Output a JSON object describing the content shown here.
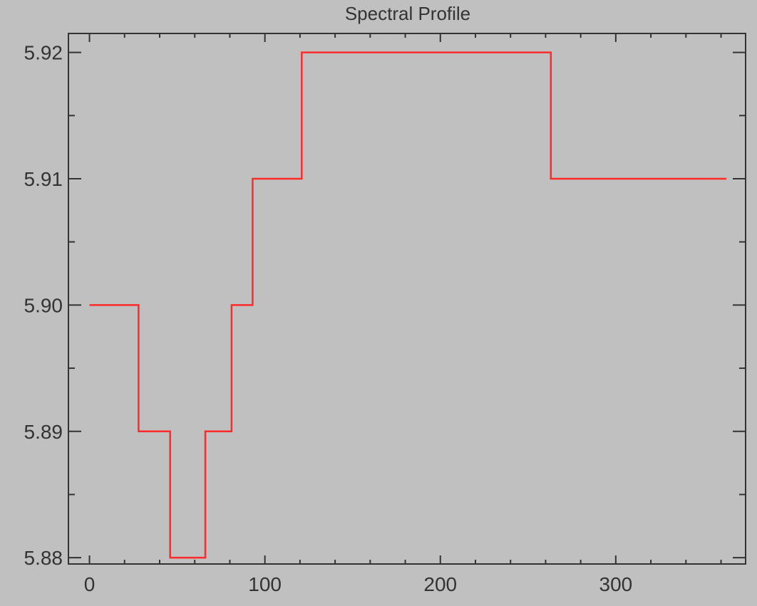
{
  "chart_data": {
    "type": "line",
    "title": "Spectral Profile",
    "xlabel": "",
    "ylabel": "",
    "xlim": [
      -12,
      374
    ],
    "ylim": [
      5.8795,
      5.9215
    ],
    "x_ticks": [
      0,
      100,
      200,
      300
    ],
    "x_tick_labels": [
      "0",
      "100",
      "200",
      "300"
    ],
    "y_ticks": [
      5.88,
      5.89,
      5.9,
      5.91,
      5.92
    ],
    "y_tick_labels": [
      "5.88",
      "5.89",
      "5.90",
      "5.91",
      "5.92"
    ],
    "grid": false,
    "legend": "none",
    "line_style": "step",
    "colors": {
      "background": "#c0c0c0",
      "series": "#ff2a2a",
      "axes": "#333333"
    },
    "series": [
      {
        "x": [
          0,
          28,
          28,
          46,
          46,
          66,
          66,
          81,
          81,
          93,
          93,
          121,
          121,
          263,
          263,
          363
        ],
        "y": [
          5.9,
          5.9,
          5.89,
          5.89,
          5.88,
          5.88,
          5.89,
          5.89,
          5.9,
          5.9,
          5.91,
          5.91,
          5.92,
          5.92,
          5.91,
          5.91
        ]
      }
    ]
  }
}
